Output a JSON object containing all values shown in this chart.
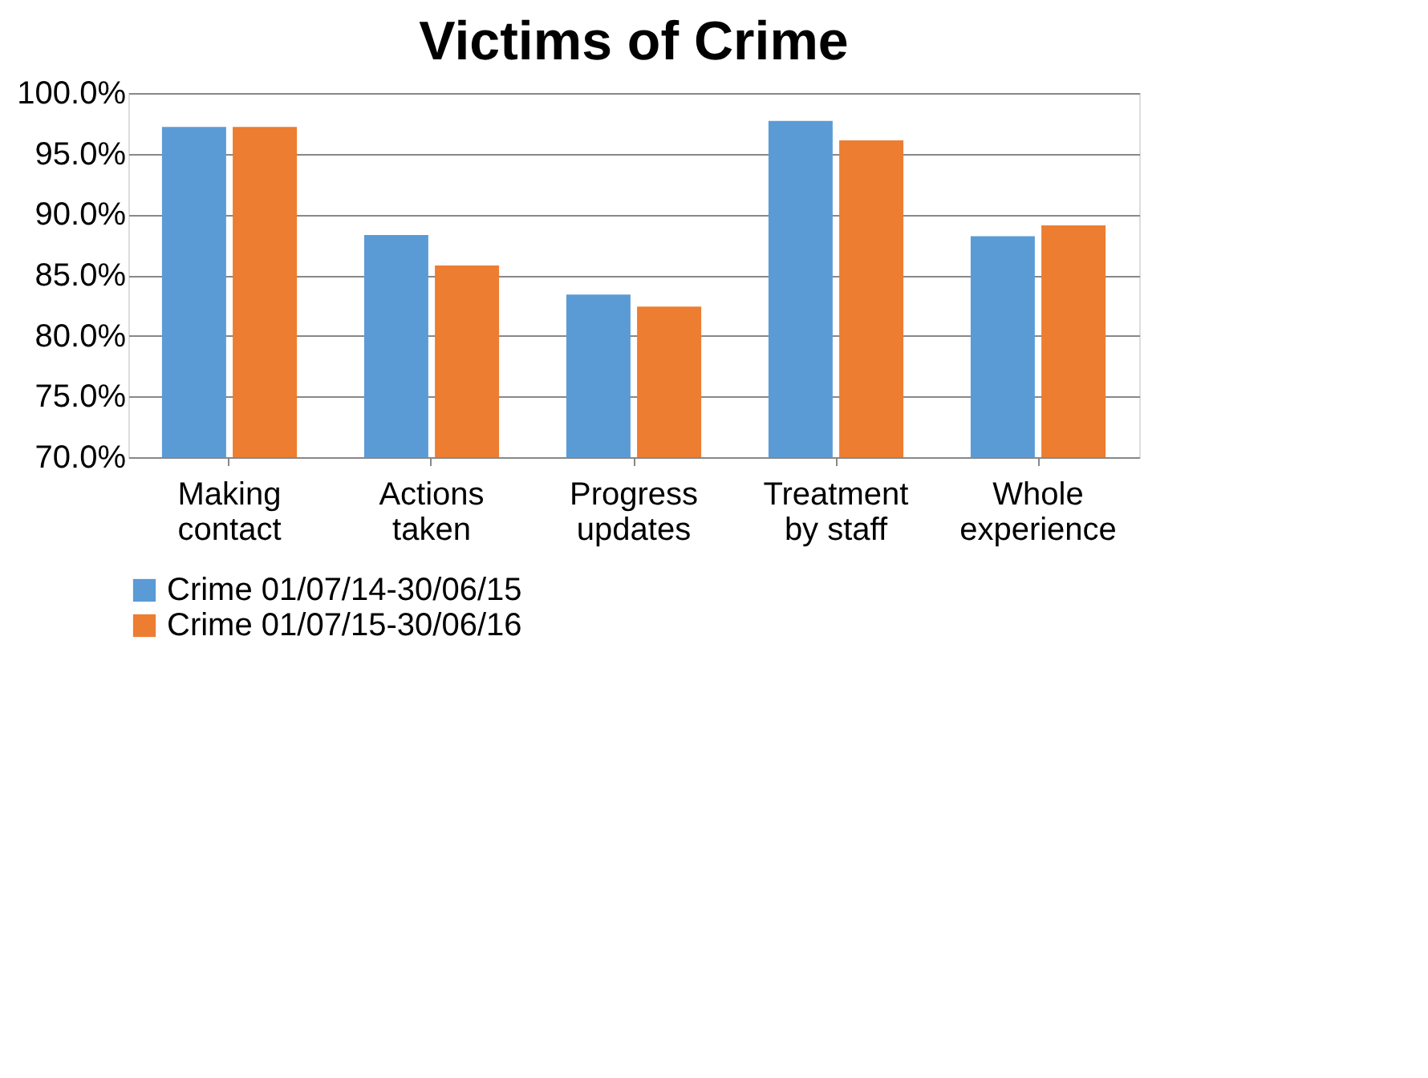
{
  "chart_data": {
    "type": "bar",
    "title": "Victims of Crime",
    "categories": [
      "Making contact",
      "Actions taken",
      "Progress updates",
      "Treatment by staff",
      "Whole experience"
    ],
    "series": [
      {
        "name": "Crime 01/07/14-30/06/15",
        "color": "#5b9bd5",
        "values": [
          97.2,
          88.3,
          83.4,
          97.7,
          88.2
        ]
      },
      {
        "name": "Crime 01/07/15-30/06/16",
        "color": "#ed7d31",
        "values": [
          97.2,
          85.8,
          82.4,
          96.1,
          89.1
        ]
      }
    ],
    "ylim": [
      70,
      100
    ],
    "yticks": [
      {
        "value": 70,
        "label": "70.0%"
      },
      {
        "value": 75,
        "label": "75.0%"
      },
      {
        "value": 80,
        "label": "80.0%"
      },
      {
        "value": 85,
        "label": "85.0%"
      },
      {
        "value": 90,
        "label": "90.0%"
      },
      {
        "value": 95,
        "label": "95.0%"
      },
      {
        "value": 100,
        "label": "100.0%"
      }
    ],
    "grid": "y",
    "legend": "bottom"
  }
}
